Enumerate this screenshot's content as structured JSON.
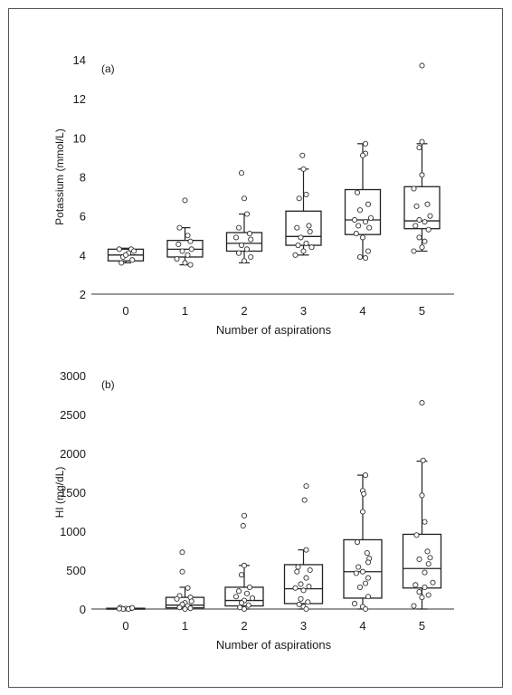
{
  "chart_data": [
    {
      "type": "box",
      "panel_label": "(a)",
      "xlabel": "Number of aspirations",
      "ylabel": "Potassium (mmol/L)",
      "ylim": [
        2,
        14
      ],
      "yticks": [
        2,
        4,
        6,
        8,
        10,
        12,
        14
      ],
      "categories": [
        "0",
        "1",
        "2",
        "3",
        "4",
        "5"
      ],
      "grid": false,
      "boxes": [
        {
          "category": "0",
          "whisker_low": 3.6,
          "q1": 3.7,
          "median": 4.0,
          "q3": 4.3,
          "whisker_high": 4.35
        },
        {
          "category": "1",
          "whisker_low": 3.5,
          "q1": 3.9,
          "median": 4.3,
          "q3": 4.75,
          "whisker_high": 5.4
        },
        {
          "category": "2",
          "whisker_low": 3.6,
          "q1": 4.2,
          "median": 4.6,
          "q3": 5.15,
          "whisker_high": 6.1
        },
        {
          "category": "3",
          "whisker_low": 4.0,
          "q1": 4.5,
          "median": 4.95,
          "q3": 6.25,
          "whisker_high": 8.4
        },
        {
          "category": "4",
          "whisker_low": 3.85,
          "q1": 5.05,
          "median": 5.8,
          "q3": 7.35,
          "whisker_high": 9.7
        },
        {
          "category": "5",
          "whisker_low": 4.2,
          "q1": 5.35,
          "median": 5.75,
          "q3": 7.5,
          "whisker_high": 9.7
        }
      ],
      "points": [
        [
          0.1,
          4.3
        ],
        [
          -0.12,
          4.3
        ],
        [
          0.05,
          4.1
        ],
        [
          -0.05,
          3.9
        ],
        [
          0.12,
          3.75
        ],
        [
          -0.08,
          3.6
        ],
        [
          0.0,
          4.0
        ],
        [
          0.15,
          4.2
        ],
        [
          0.0,
          6.8
        ],
        [
          -0.1,
          5.4
        ],
        [
          0.05,
          5.0
        ],
        [
          0.1,
          4.7
        ],
        [
          -0.12,
          4.55
        ],
        [
          0.12,
          4.3
        ],
        [
          -0.05,
          4.2
        ],
        [
          0.05,
          4.0
        ],
        [
          -0.15,
          3.8
        ],
        [
          0.0,
          3.6
        ],
        [
          0.1,
          3.5
        ],
        [
          -0.05,
          8.2
        ],
        [
          0.0,
          6.9
        ],
        [
          0.05,
          6.1
        ],
        [
          -0.1,
          5.4
        ],
        [
          0.1,
          5.1
        ],
        [
          -0.15,
          4.9
        ],
        [
          0.12,
          4.8
        ],
        [
          -0.05,
          4.5
        ],
        [
          0.05,
          4.3
        ],
        [
          -0.1,
          4.1
        ],
        [
          0.12,
          3.9
        ],
        [
          0.0,
          3.7
        ],
        [
          -0.02,
          9.1
        ],
        [
          0.0,
          8.4
        ],
        [
          0.05,
          7.1
        ],
        [
          -0.08,
          6.9
        ],
        [
          0.1,
          5.5
        ],
        [
          -0.12,
          5.4
        ],
        [
          0.12,
          5.2
        ],
        [
          -0.05,
          4.9
        ],
        [
          0.05,
          4.6
        ],
        [
          -0.1,
          4.5
        ],
        [
          0.15,
          4.4
        ],
        [
          0.0,
          4.2
        ],
        [
          -0.15,
          4.0
        ],
        [
          0.05,
          9.7
        ],
        [
          0.05,
          9.2
        ],
        [
          0.0,
          9.1
        ],
        [
          -0.1,
          7.2
        ],
        [
          0.1,
          6.6
        ],
        [
          -0.05,
          6.3
        ],
        [
          0.15,
          5.9
        ],
        [
          -0.15,
          5.8
        ],
        [
          0.05,
          5.7
        ],
        [
          -0.08,
          5.5
        ],
        [
          0.12,
          5.4
        ],
        [
          -0.12,
          5.1
        ],
        [
          0.0,
          4.9
        ],
        [
          0.1,
          4.2
        ],
        [
          -0.05,
          3.9
        ],
        [
          0.05,
          3.85
        ],
        [
          0.0,
          13.7
        ],
        [
          0.0,
          9.8
        ],
        [
          -0.05,
          9.5
        ],
        [
          0.0,
          8.1
        ],
        [
          -0.15,
          7.4
        ],
        [
          0.1,
          6.6
        ],
        [
          -0.1,
          6.5
        ],
        [
          0.15,
          6.0
        ],
        [
          -0.05,
          5.8
        ],
        [
          0.05,
          5.7
        ],
        [
          -0.12,
          5.5
        ],
        [
          0.12,
          5.3
        ],
        [
          -0.05,
          4.9
        ],
        [
          0.05,
          4.7
        ],
        [
          0.0,
          4.4
        ],
        [
          -0.15,
          4.2
        ]
      ]
    },
    {
      "type": "box",
      "panel_label": "(b)",
      "xlabel": "Number of aspirations",
      "ylabel": "HI (mg/dL)",
      "ylim": [
        0,
        3000
      ],
      "yticks": [
        0,
        500,
        1000,
        1500,
        2000,
        2500,
        3000
      ],
      "categories": [
        "0",
        "1",
        "2",
        "3",
        "4",
        "5"
      ],
      "grid": false,
      "boxes": [
        {
          "category": "0",
          "whisker_low": 0,
          "q1": 0,
          "median": 5,
          "q3": 10,
          "whisker_high": 15
        },
        {
          "category": "1",
          "whisker_low": 0,
          "q1": 15,
          "median": 50,
          "q3": 150,
          "whisker_high": 280
        },
        {
          "category": "2",
          "whisker_low": 0,
          "q1": 40,
          "median": 110,
          "q3": 280,
          "whisker_high": 560
        },
        {
          "category": "3",
          "whisker_low": 0,
          "q1": 70,
          "median": 260,
          "q3": 570,
          "whisker_high": 760
        },
        {
          "category": "4",
          "whisker_low": 0,
          "q1": 140,
          "median": 480,
          "q3": 890,
          "whisker_high": 1720
        },
        {
          "category": "5",
          "whisker_low": 0,
          "q1": 270,
          "median": 520,
          "q3": 960,
          "whisker_high": 1900
        }
      ],
      "points": [
        [
          -0.1,
          20
        ],
        [
          0.1,
          10
        ],
        [
          0.0,
          5
        ],
        [
          0.05,
          0
        ],
        [
          -0.05,
          0
        ],
        [
          0.12,
          15
        ],
        [
          -0.12,
          5
        ],
        [
          -0.05,
          730
        ],
        [
          -0.05,
          480
        ],
        [
          0.05,
          270
        ],
        [
          -0.1,
          170
        ],
        [
          0.1,
          150
        ],
        [
          -0.15,
          130
        ],
        [
          0.12,
          100
        ],
        [
          0.0,
          80
        ],
        [
          -0.05,
          60
        ],
        [
          0.05,
          40
        ],
        [
          -0.1,
          20
        ],
        [
          0.1,
          10
        ],
        [
          0.0,
          0
        ],
        [
          0.0,
          1200
        ],
        [
          -0.02,
          1070
        ],
        [
          0.0,
          560
        ],
        [
          -0.05,
          440
        ],
        [
          0.1,
          280
        ],
        [
          -0.1,
          230
        ],
        [
          0.05,
          200
        ],
        [
          -0.15,
          160
        ],
        [
          0.15,
          140
        ],
        [
          0.0,
          110
        ],
        [
          -0.05,
          80
        ],
        [
          0.08,
          50
        ],
        [
          -0.08,
          20
        ],
        [
          0.0,
          0
        ],
        [
          0.05,
          1580
        ],
        [
          0.02,
          1400
        ],
        [
          0.05,
          760
        ],
        [
          -0.1,
          540
        ],
        [
          0.12,
          500
        ],
        [
          -0.12,
          480
        ],
        [
          0.05,
          400
        ],
        [
          -0.05,
          320
        ],
        [
          0.1,
          290
        ],
        [
          -0.15,
          270
        ],
        [
          0.0,
          240
        ],
        [
          -0.05,
          130
        ],
        [
          0.08,
          90
        ],
        [
          -0.08,
          60
        ],
        [
          0.0,
          30
        ],
        [
          0.05,
          0
        ],
        [
          0.05,
          1720
        ],
        [
          0.0,
          1520
        ],
        [
          0.02,
          1480
        ],
        [
          0.0,
          1250
        ],
        [
          -0.1,
          860
        ],
        [
          0.08,
          720
        ],
        [
          0.12,
          650
        ],
        [
          0.1,
          600
        ],
        [
          -0.08,
          540
        ],
        [
          0.0,
          480
        ],
        [
          -0.12,
          460
        ],
        [
          0.1,
          400
        ],
        [
          0.05,
          330
        ],
        [
          -0.05,
          280
        ],
        [
          0.1,
          160
        ],
        [
          -0.15,
          70
        ],
        [
          0.0,
          30
        ],
        [
          0.05,
          0
        ],
        [
          0.0,
          2650
        ],
        [
          0.02,
          1910
        ],
        [
          0.0,
          1460
        ],
        [
          0.05,
          1120
        ],
        [
          -0.1,
          950
        ],
        [
          0.1,
          740
        ],
        [
          0.15,
          660
        ],
        [
          -0.05,
          640
        ],
        [
          0.12,
          580
        ],
        [
          0.05,
          470
        ],
        [
          0.2,
          340
        ],
        [
          -0.12,
          310
        ],
        [
          0.05,
          280
        ],
        [
          -0.05,
          220
        ],
        [
          0.12,
          180
        ],
        [
          0.0,
          150
        ],
        [
          -0.15,
          40
        ]
      ]
    }
  ]
}
